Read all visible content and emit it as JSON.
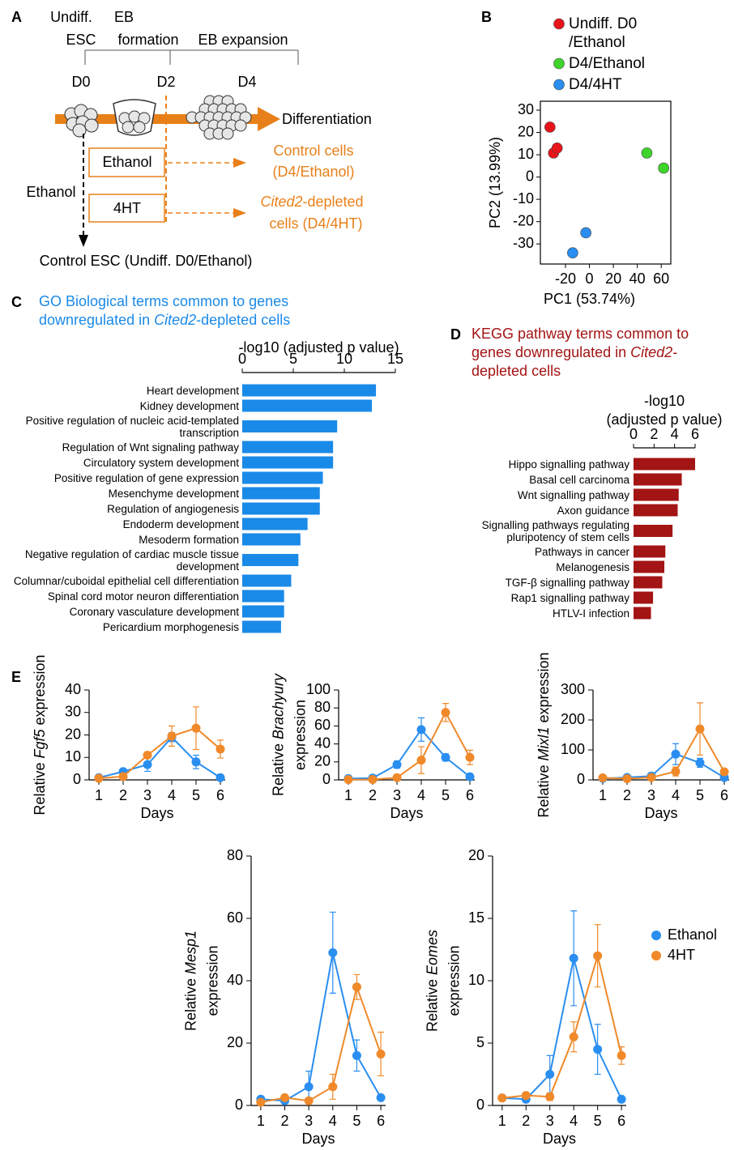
{
  "panel_labels": [
    "A",
    "B",
    "C",
    "D",
    "E"
  ],
  "diagram": {
    "undiff_esc": [
      "Undiff.",
      "ESC"
    ],
    "eb_formation": [
      "EB",
      "formation"
    ],
    "eb_expansion": "EB expansion",
    "days": [
      "D0",
      "D2",
      "D4"
    ],
    "differentiation": "Differentiation",
    "treatments": [
      "Ethanol",
      "4HT"
    ],
    "control_cells": [
      "Control cells",
      "(D4/Ethanol)"
    ],
    "depleted_gene": "Cited2",
    "depleted_cells": [
      "-depleted",
      "cells (D4/4HT)"
    ],
    "side_treatment": "Ethanol",
    "control_esc": "Control ESC (Undiff. D0/Ethanol)"
  },
  "chart_data": [
    {
      "type": "scatter",
      "xlabel": "PC1 (53.74%)",
      "ylabel": "PC2 (13.99%)",
      "xlim": [
        -41,
        68
      ],
      "ylim": [
        -39,
        34
      ],
      "xticks": [
        -20,
        0,
        20,
        40,
        60
      ],
      "yticks": [
        -30,
        -20,
        -10,
        0,
        10,
        20,
        30
      ],
      "legend": "above",
      "series": [
        {
          "name": "Undiff. D0 /Ethanol",
          "color": "#e8141b",
          "x": [
            -33,
            -30,
            -27
          ],
          "y": [
            22.4,
            10.8,
            13
          ]
        },
        {
          "name": "D4/Ethanol",
          "color": "#3ed42a",
          "x": [
            48,
            62
          ],
          "y": [
            10.8,
            4
          ]
        },
        {
          "name": "D4/4HT",
          "color": "#2a8ef0",
          "x": [
            -3,
            -14
          ],
          "y": [
            -25,
            -34
          ]
        }
      ]
    },
    {
      "type": "hbar",
      "title": [
        "GO Biological terms common to genes downregulated in ",
        "Cited2",
        "-depleted cells"
      ],
      "xlabel": "-log10 (adjusted p value)",
      "xlim": [
        0,
        15
      ],
      "xticks": [
        0,
        5,
        10,
        15
      ],
      "color": "#1a8ae8",
      "categories": [
        "Heart development",
        "Kidney development",
        "Positive regulation of nucleic acid-templated transcription",
        "Regulation of Wnt signaling pathway",
        "Circulatory system development",
        "Positive regulation of gene expression",
        "Mesenchyme development",
        "Regulation of angiogenesis",
        "Endoderm development",
        "Mesoderm formation",
        "Negative regulation of cardiac muscle tissue development",
        "Columnar/cuboidal epithelial cell differentiation",
        "Spinal cord motor neuron differentiation",
        "Coronary vasculature development",
        "Pericardium morphogenesis"
      ],
      "values": [
        13.1,
        12.7,
        9.3,
        8.9,
        8.9,
        7.9,
        7.6,
        7.6,
        6.4,
        5.7,
        5.5,
        4.8,
        4.1,
        4.1,
        3.8
      ]
    },
    {
      "type": "hbar",
      "title": [
        "KEGG pathway terms common to genes downregulated in ",
        "Cited2",
        "-depleted cells"
      ],
      "xlabel": [
        "-log10",
        "(adjusted p value)"
      ],
      "xlim": [
        0,
        6
      ],
      "xticks": [
        0,
        2,
        4,
        6
      ],
      "color": "#a31414",
      "categories": [
        "Hippo signalling pathway",
        "Basal cell carcinoma",
        "Wnt signalling pathway",
        "Axon guidance",
        "Signalling pathways regulating pluripotency of stem cells",
        "Pathways in cancer",
        "Melanogenesis",
        "TGF-β signalling pathway",
        "Rap1 signalling pathway",
        "HTLV-I infection"
      ],
      "values": [
        6.0,
        4.7,
        4.4,
        4.3,
        3.8,
        3.1,
        3.0,
        2.8,
        1.9,
        1.7
      ]
    },
    {
      "type": "line",
      "ylabel": [
        [
          "Relative ",
          "Fgf5",
          " expression"
        ]
      ],
      "xlabel": "Days",
      "x": [
        1,
        2,
        3,
        4,
        5,
        6
      ],
      "xlim": [
        0.6,
        6.2
      ],
      "xticks": [
        1,
        2,
        3,
        4,
        5,
        6
      ],
      "ylim": [
        0,
        40
      ],
      "yticks": [
        0,
        10,
        20,
        30,
        40
      ],
      "series": [
        {
          "color": "#2a8ef0",
          "values": [
            1,
            3.7,
            6.8,
            19,
            8,
            1
          ],
          "errors": [
            0.2,
            1.2,
            3,
            2,
            3,
            0.3
          ]
        },
        {
          "color": "#f0892a",
          "values": [
            0.7,
            1.5,
            11,
            19.5,
            23,
            13.7
          ],
          "errors": [
            0.2,
            0.8,
            0.5,
            4.5,
            9.5,
            4
          ]
        }
      ]
    },
    {
      "type": "line",
      "ylabel": [
        [
          "Relative ",
          "Brachyury"
        ],
        [
          "expression"
        ]
      ],
      "xlabel": "Days",
      "x": [
        1,
        2,
        3,
        4,
        5,
        6
      ],
      "xlim": [
        0.6,
        6.2
      ],
      "xticks": [
        1,
        2,
        3,
        4,
        5,
        6
      ],
      "ylim": [
        0,
        100
      ],
      "yticks": [
        0,
        20,
        40,
        60,
        80,
        100
      ],
      "series": [
        {
          "color": "#2a8ef0",
          "values": [
            1.5,
            2,
            17,
            56,
            25,
            3.5
          ],
          "errors": [
            0.5,
            0.5,
            4,
            13,
            4,
            0.5
          ]
        },
        {
          "color": "#f0892a",
          "values": [
            0.3,
            0.5,
            2.5,
            22,
            75,
            25
          ],
          "errors": [
            0.2,
            0.2,
            0.5,
            15,
            10,
            8
          ]
        }
      ]
    },
    {
      "type": "line",
      "ylabel": [
        [
          "Relative ",
          "Mixl1",
          " expression"
        ]
      ],
      "xlabel": "Days",
      "x": [
        1,
        2,
        3,
        4,
        5,
        6
      ],
      "xlim": [
        0.6,
        6.2
      ],
      "xticks": [
        1,
        2,
        3,
        4,
        5,
        6
      ],
      "ylim": [
        0,
        300
      ],
      "yticks": [
        0,
        100,
        200,
        300
      ],
      "series": [
        {
          "color": "#2a8ef0",
          "values": [
            5,
            8,
            13,
            86,
            57,
            8
          ],
          "errors": [
            1,
            1,
            3,
            35,
            15,
            3
          ]
        },
        {
          "color": "#f0892a",
          "values": [
            7,
            4,
            8,
            28,
            170,
            27
          ],
          "errors": [
            3,
            1,
            2,
            15,
            87,
            7
          ]
        }
      ]
    },
    {
      "type": "line",
      "ylabel": [
        [
          "Relative ",
          "Mesp1"
        ],
        [
          "expression"
        ]
      ],
      "xlabel": "Days",
      "x": [
        1,
        2,
        3,
        4,
        5,
        6
      ],
      "xlim": [
        0.6,
        6.2
      ],
      "xticks": [
        1,
        2,
        3,
        4,
        5,
        6
      ],
      "ylim": [
        0,
        80
      ],
      "yticks": [
        0,
        20,
        40,
        60,
        80
      ],
      "series": [
        {
          "color": "#2a8ef0",
          "values": [
            2,
            1.5,
            6,
            49,
            16,
            2.5
          ],
          "errors": [
            0.5,
            0.5,
            5,
            13,
            5,
            0.5
          ]
        },
        {
          "color": "#f0892a",
          "values": [
            1,
            2.5,
            1.5,
            6,
            38,
            16.5
          ],
          "errors": [
            0.2,
            0.5,
            0.5,
            4,
            4,
            7
          ]
        }
      ]
    },
    {
      "type": "line",
      "ylabel": [
        [
          "Relative ",
          "Eomes"
        ],
        [
          "expression"
        ]
      ],
      "xlabel": "Days",
      "x": [
        1,
        2,
        3,
        4,
        5,
        6
      ],
      "xlim": [
        0.6,
        6.2
      ],
      "xticks": [
        1,
        2,
        3,
        4,
        5,
        6
      ],
      "ylim": [
        0,
        20
      ],
      "yticks": [
        0,
        5,
        10,
        15,
        20
      ],
      "legend": "upper right",
      "series": [
        {
          "name": "Ethanol",
          "color": "#2a8ef0",
          "values": [
            0.6,
            0.5,
            2.5,
            11.8,
            4.5,
            0.5
          ],
          "errors": [
            0.1,
            0.1,
            1.5,
            3.8,
            2,
            0.1
          ]
        },
        {
          "name": "4HT",
          "color": "#f0892a",
          "values": [
            0.6,
            0.8,
            0.7,
            5.5,
            12,
            4
          ],
          "errors": [
            0.1,
            0.2,
            0.3,
            1.2,
            2.5,
            0.7
          ]
        }
      ]
    }
  ]
}
